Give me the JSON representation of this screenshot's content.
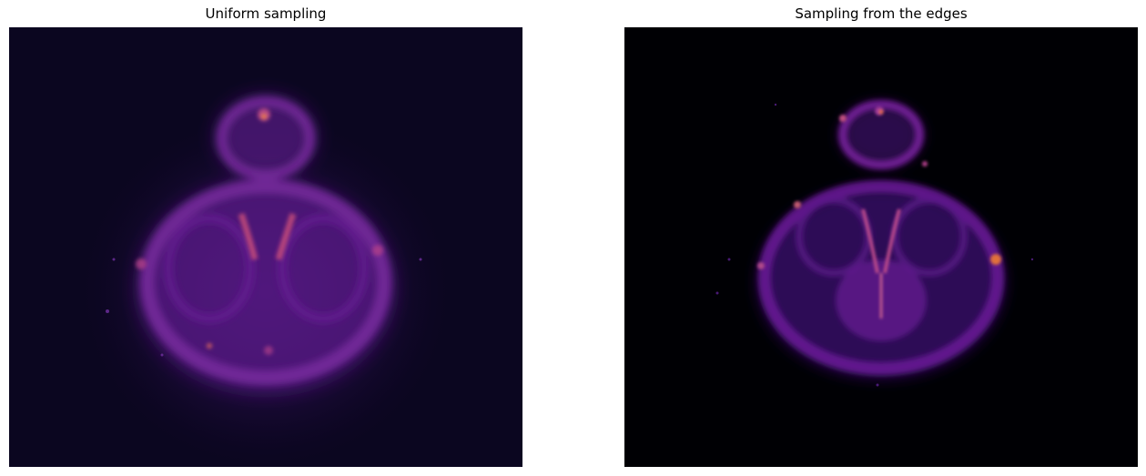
{
  "figure": {
    "left": {
      "title": "Uniform sampling"
    },
    "right": {
      "title": "Sampling from the edges"
    }
  },
  "colormap": {
    "name": "inferno",
    "background": "#000004",
    "colors": [
      "#0b0620",
      "#3b0f70",
      "#6a1a96",
      "#9b2d8a",
      "#e06a2a",
      "#f3a33a"
    ]
  }
}
